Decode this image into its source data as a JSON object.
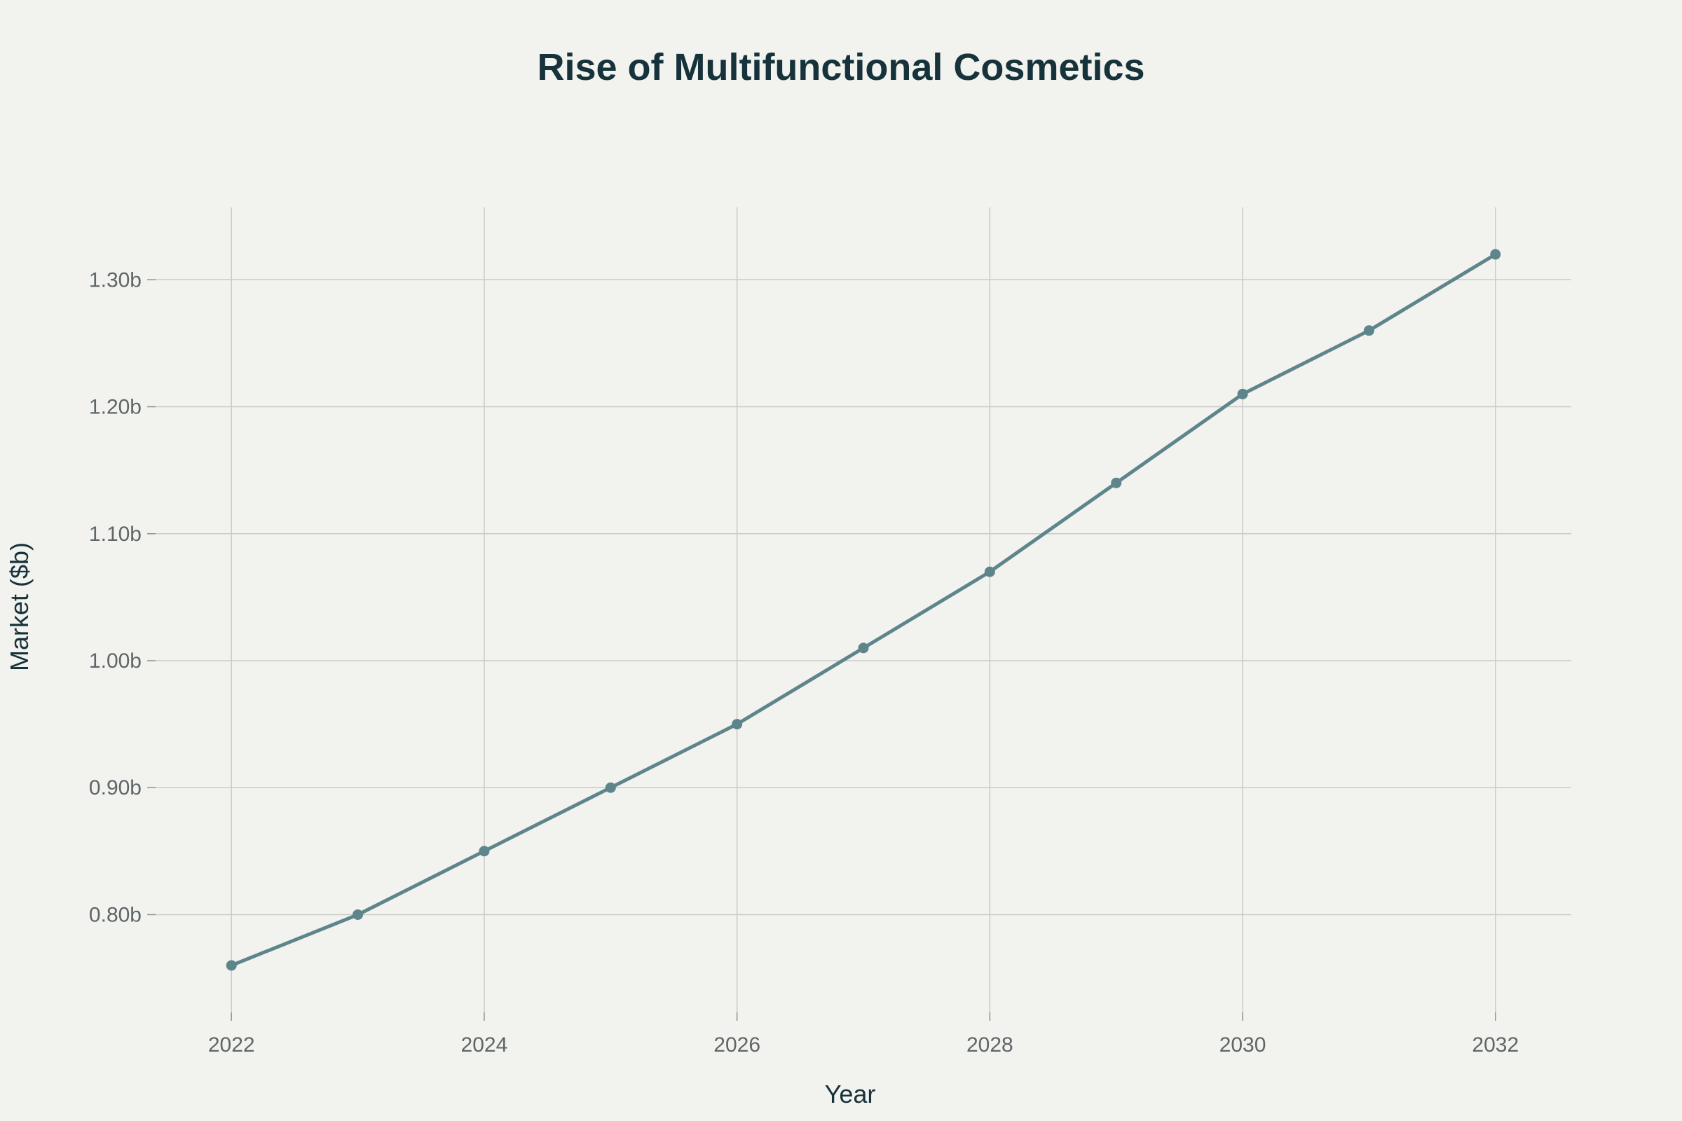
{
  "chart_data": {
    "type": "line",
    "title": "Rise of Multifunctional Cosmetics",
    "xlabel": "Year",
    "ylabel": "Market ($b)",
    "x": [
      2022,
      2023,
      2024,
      2025,
      2026,
      2027,
      2028,
      2029,
      2030,
      2031,
      2032
    ],
    "series": [
      {
        "values": [
          0.76,
          0.8,
          0.85,
          0.9,
          0.95,
          1.01,
          1.07,
          1.14,
          1.21,
          1.26,
          1.32
        ]
      }
    ],
    "xlim": [
      2021.4,
      2032.6
    ],
    "ylim": [
      0.723,
      1.357
    ],
    "x_ticks": [
      2022,
      2024,
      2026,
      2028,
      2030,
      2032
    ],
    "x_tick_labels": [
      "2022",
      "2024",
      "2026",
      "2028",
      "2030",
      "2032"
    ],
    "y_ticks": [
      0.8,
      0.9,
      1.0,
      1.1,
      1.2,
      1.3
    ],
    "y_tick_labels": [
      "0.80b",
      "0.90b",
      "1.00b",
      "1.10b",
      "1.20b",
      "1.30b"
    ],
    "grid": true,
    "legend": "none",
    "colors": {
      "line": "#5e858b",
      "background": "#f2f2ee",
      "grid": "#c9cbc6"
    }
  }
}
